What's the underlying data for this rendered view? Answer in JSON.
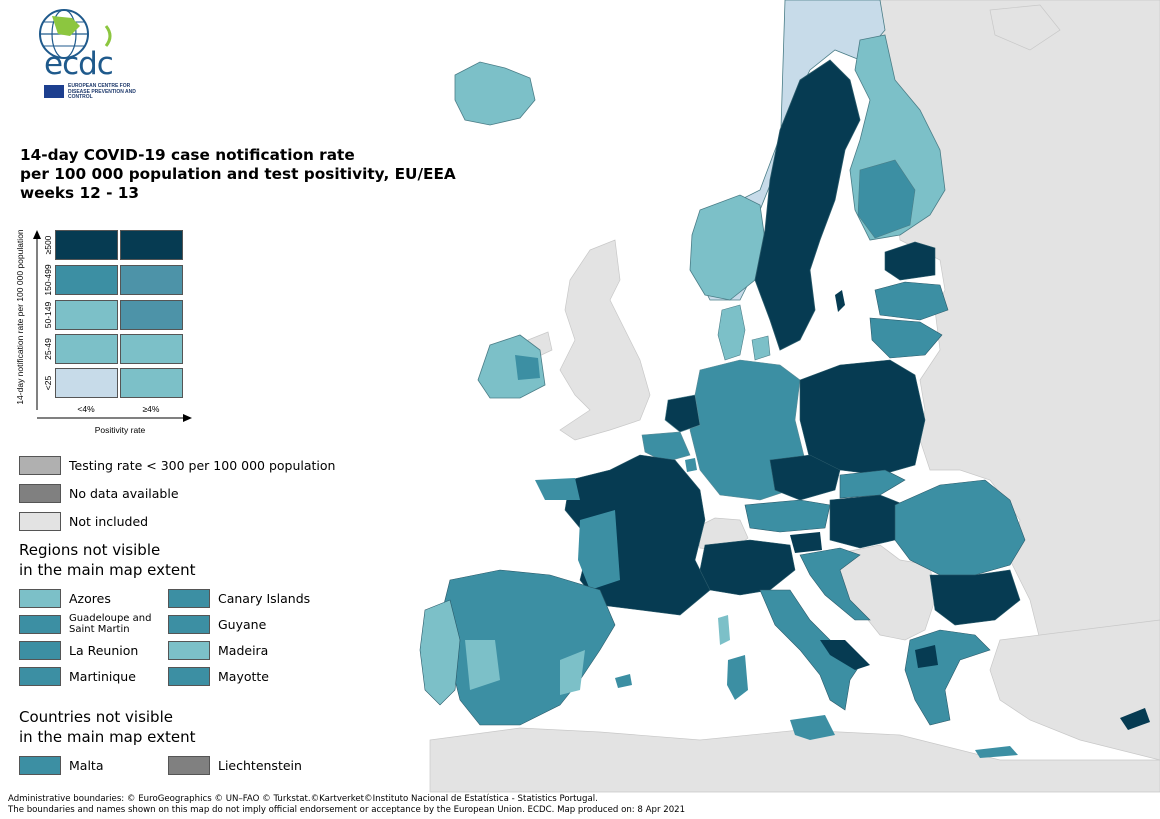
{
  "logo": {
    "text": "ecdc",
    "subtitle": "EUROPEAN CENTRE FOR DISEASE PREVENTION AND CONTROL"
  },
  "title": {
    "line1": "14-day COVID-19 case notification rate",
    "line2": "per 100 000 population and test positivity, EU/EEA",
    "line3": "weeks 12 - 13"
  },
  "matrix": {
    "y_axis_title": "14-day notification rate per 100 000 population",
    "x_axis_title": "Positivity rate",
    "rows": [
      "≥500",
      "150-499",
      "50-149",
      "25-49",
      "<25"
    ],
    "columns": [
      "<4%",
      "≥4%"
    ],
    "colors": [
      [
        "#063b52",
        "#063b52"
      ],
      [
        "#3c8fa3",
        "#4d93a8"
      ],
      [
        "#7cc0c8",
        "#4d93a8"
      ],
      [
        "#7cc0c8",
        "#7cc0c8"
      ],
      [
        "#c7dbe9",
        "#7cc0c8"
      ]
    ]
  },
  "status_legend": [
    {
      "label": "Testing rate < 300 per 100 000 population",
      "color": "#b0b0b0"
    },
    {
      "label": "No data available",
      "color": "#808080"
    },
    {
      "label": "Not included",
      "color": "#e3e3e3"
    }
  ],
  "regions": {
    "heading_line1": "Regions not visible",
    "heading_line2": "in the main map extent",
    "items": [
      {
        "label": "Azores",
        "color": "#7cc0c8"
      },
      {
        "label": "Canary Islands",
        "color": "#3c8fa3"
      },
      {
        "label": "Guadeloupe and Saint Martin",
        "color": "#3c8fa3"
      },
      {
        "label": "Guyane",
        "color": "#3c8fa3"
      },
      {
        "label": "La Reunion",
        "color": "#3c8fa3"
      },
      {
        "label": "Madeira",
        "color": "#7cc0c8"
      },
      {
        "label": "Martinique",
        "color": "#3c8fa3"
      },
      {
        "label": "Mayotte",
        "color": "#3c8fa3"
      }
    ]
  },
  "countries": {
    "heading_line1": "Countries not visible",
    "heading_line2": "in the main map extent",
    "items": [
      {
        "label": "Malta",
        "color": "#3c8fa3"
      },
      {
        "label": "Liechtenstein",
        "color": "#808080"
      }
    ]
  },
  "footer": {
    "line1": "Administrative boundaries: © EuroGeographics © UN–FAO © Turkstat.©Kartverket©Instituto Nacional de Estatística - Statistics Portugal.",
    "line2": "The boundaries and names shown on this map do not imply official endorsement or acceptance by the European Union. ECDC. Map produced on: 8 Apr 2021"
  },
  "palette": {
    "dark": "#063b52",
    "mid": "#3c8fa3",
    "light": "#7cc0c8",
    "pale": "#c7dbe9",
    "not_included": "#e3e3e3",
    "sea": "#ffffff"
  }
}
